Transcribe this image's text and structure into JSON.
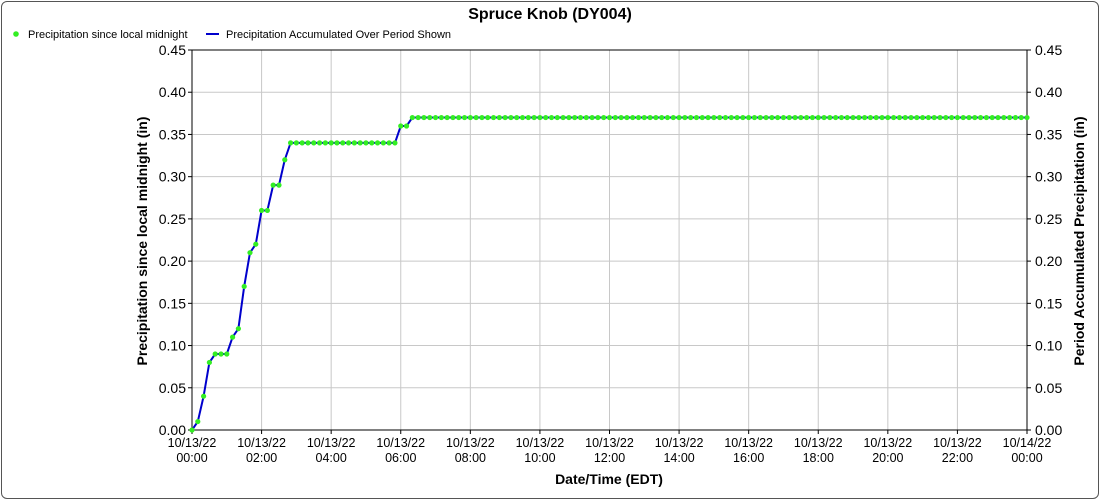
{
  "chart_data": {
    "type": "line",
    "title": "Spruce Knob (DY004)",
    "xlabel": "Date/Time (EDT)",
    "ylabel": "Precipitation since local midnight (in)",
    "y2label": "Period Accumulated Precipitation (in)",
    "ylim": [
      0,
      0.45
    ],
    "y_ticks": [
      "0.00",
      "0.05",
      "0.10",
      "0.15",
      "0.20",
      "0.25",
      "0.30",
      "0.35",
      "0.40",
      "0.45"
    ],
    "x_ticks": [
      {
        "date": "10/13/22",
        "time": "00:00"
      },
      {
        "date": "10/13/22",
        "time": "02:00"
      },
      {
        "date": "10/13/22",
        "time": "04:00"
      },
      {
        "date": "10/13/22",
        "time": "06:00"
      },
      {
        "date": "10/13/22",
        "time": "08:00"
      },
      {
        "date": "10/13/22",
        "time": "10:00"
      },
      {
        "date": "10/13/22",
        "time": "12:00"
      },
      {
        "date": "10/13/22",
        "time": "14:00"
      },
      {
        "date": "10/13/22",
        "time": "16:00"
      },
      {
        "date": "10/13/22",
        "time": "18:00"
      },
      {
        "date": "10/13/22",
        "time": "20:00"
      },
      {
        "date": "10/13/22",
        "time": "22:00"
      },
      {
        "date": "10/14/22",
        "time": "00:00"
      }
    ],
    "xlim": [
      "10/13/22 00:00",
      "10/14/22 00:00"
    ],
    "grid": true,
    "legend_position": "top-left",
    "series": [
      {
        "name": "Precipitation since local midnight",
        "style": "markers",
        "color": "#33ee22",
        "x": [
          "10/13/22 00:00",
          "10/13/22 00:10",
          "10/13/22 00:20",
          "10/13/22 00:30",
          "10/13/22 00:40",
          "10/13/22 00:50",
          "10/13/22 01:00",
          "10/13/22 01:10",
          "10/13/22 01:20",
          "10/13/22 01:30",
          "10/13/22 01:40",
          "10/13/22 01:50",
          "10/13/22 02:00",
          "10/13/22 02:10",
          "10/13/22 02:20",
          "10/13/22 02:30",
          "10/13/22 02:40",
          "10/13/22 02:50",
          "10/13/22 03:00",
          "10/13/22 03:10",
          "10/13/22 03:20",
          "10/13/22 03:30",
          "10/13/22 03:40",
          "10/13/22 03:50",
          "10/13/22 04:00",
          "10/13/22 04:10",
          "10/13/22 04:20",
          "10/13/22 04:30",
          "10/13/22 04:40",
          "10/13/22 04:50",
          "10/13/22 05:00",
          "10/13/22 05:10",
          "10/13/22 05:20",
          "10/13/22 05:30",
          "10/13/22 05:40",
          "10/13/22 05:50",
          "10/13/22 06:00",
          "10/13/22 06:10",
          "10/13/22 06:20"
        ],
        "values": [
          0.0,
          0.01,
          0.04,
          0.08,
          0.09,
          0.09,
          0.09,
          0.11,
          0.12,
          0.17,
          0.21,
          0.22,
          0.26,
          0.26,
          0.29,
          0.29,
          0.32,
          0.34,
          0.34,
          0.34,
          0.34,
          0.34,
          0.34,
          0.34,
          0.34,
          0.34,
          0.34,
          0.34,
          0.34,
          0.34,
          0.34,
          0.34,
          0.34,
          0.34,
          0.34,
          0.34,
          0.36,
          0.36,
          0.37
        ],
        "constant_after": {
          "from": "10/13/22 06:20",
          "to": "10/14/22 00:00",
          "value": 0.37,
          "interval_minutes": 10
        }
      },
      {
        "name": "Precipitation Accumulated Over Period Shown",
        "style": "line",
        "color": "#0000cc",
        "x": [
          "10/13/22 00:00",
          "10/13/22 00:10",
          "10/13/22 00:20",
          "10/13/22 00:30",
          "10/13/22 00:40",
          "10/13/22 00:50",
          "10/13/22 01:00",
          "10/13/22 01:10",
          "10/13/22 01:20",
          "10/13/22 01:30",
          "10/13/22 01:40",
          "10/13/22 01:50",
          "10/13/22 02:00",
          "10/13/22 02:10",
          "10/13/22 02:20",
          "10/13/22 02:30",
          "10/13/22 02:40",
          "10/13/22 02:50",
          "10/13/22 05:50",
          "10/13/22 06:00",
          "10/13/22 06:10",
          "10/13/22 06:20",
          "10/14/22 00:00"
        ],
        "values": [
          0.0,
          0.01,
          0.04,
          0.08,
          0.09,
          0.09,
          0.09,
          0.11,
          0.12,
          0.17,
          0.21,
          0.22,
          0.26,
          0.26,
          0.29,
          0.29,
          0.32,
          0.34,
          0.34,
          0.36,
          0.36,
          0.37,
          0.37
        ]
      }
    ]
  },
  "colors": {
    "grid": "#c8c8c8",
    "axis": "#000000",
    "marker": "#33ee22",
    "line": "#0000cc"
  }
}
